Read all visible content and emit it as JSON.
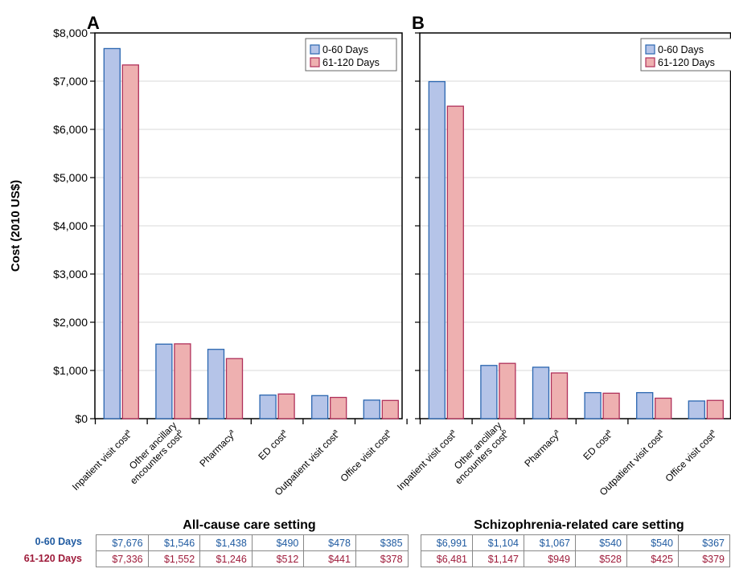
{
  "colors": {
    "series0_fill": "#b5c4e8",
    "series0_stroke": "#2a66b0",
    "series1_fill": "#eeb0b0",
    "series1_stroke": "#b0305a",
    "series0_text": "#1f5aa0",
    "series1_text": "#9e1b3a",
    "gridline": "#d8d8d8"
  },
  "ylabel": "Cost (2010 US$)",
  "row_labels": [
    "0-60 Days",
    "61-120 Days"
  ],
  "chart_data": [
    {
      "type": "bar",
      "panel_label": "A",
      "title": "All-cause care setting",
      "categories": [
        "Inpatient visit cost",
        "Other ancillary encounters cost",
        "Pharmacy",
        "ED cost",
        "Outpatient visit cost",
        "Office visit cost"
      ],
      "category_lines": [
        [
          "Inpatient visit cost"
        ],
        [
          "Other ancillary",
          "encounters cost"
        ],
        [
          "Pharmacy"
        ],
        [
          "ED cost"
        ],
        [
          "Outpatient visit cost"
        ],
        [
          "Office visit cost"
        ]
      ],
      "category_superscripts": [
        "a",
        "b",
        "a",
        "a",
        "a",
        "a"
      ],
      "series": [
        {
          "name": "0-60 Days",
          "values": [
            7676,
            1546,
            1438,
            490,
            478,
            385
          ]
        },
        {
          "name": "61-120 Days",
          "values": [
            7336,
            1552,
            1246,
            512,
            441,
            378
          ]
        }
      ],
      "table": [
        [
          "$7,676",
          "$1,546",
          "$1,438",
          "$490",
          "$478",
          "$385"
        ],
        [
          "$7,336",
          "$1,552",
          "$1,246",
          "$512",
          "$441",
          "$378"
        ]
      ],
      "ylim": [
        0,
        8000
      ],
      "yticks": [
        0,
        1000,
        2000,
        3000,
        4000,
        5000,
        6000,
        7000,
        8000
      ],
      "ytick_labels": [
        "$0",
        "$1,000",
        "$2,000",
        "$3,000",
        "$4,000",
        "$5,000",
        "$6,000",
        "$7,000",
        "$8,000"
      ],
      "grid": true,
      "legend_position": "top-right"
    },
    {
      "type": "bar",
      "panel_label": "B",
      "title": "Schizophrenia-related care setting",
      "categories": [
        "Inpatient visit cost",
        "Other ancillary encounters cost",
        "Pharmacy",
        "ED cost",
        "Outpatient visit cost",
        "Office visit cost"
      ],
      "category_lines": [
        [
          "Inpatient visit cost"
        ],
        [
          "Other ancillary",
          "encounters cost"
        ],
        [
          "Pharmacy"
        ],
        [
          "ED cost"
        ],
        [
          "Outpatient visit cost"
        ],
        [
          "Office visit cost"
        ]
      ],
      "category_superscripts": [
        "a",
        "b",
        "a",
        "a",
        "a",
        "a"
      ],
      "series": [
        {
          "name": "0-60 Days",
          "values": [
            6991,
            1104,
            1067,
            540,
            540,
            367
          ]
        },
        {
          "name": "61-120 Days",
          "values": [
            6481,
            1147,
            949,
            528,
            425,
            379
          ]
        }
      ],
      "table": [
        [
          "$6,991",
          "$1,104",
          "$1,067",
          "$540",
          "$540",
          "$367"
        ],
        [
          "$6,481",
          "$1,147",
          "$949",
          "$528",
          "$425",
          "$379"
        ]
      ],
      "ylim": [
        0,
        8000
      ],
      "grid": true,
      "legend_position": "top-right"
    }
  ]
}
